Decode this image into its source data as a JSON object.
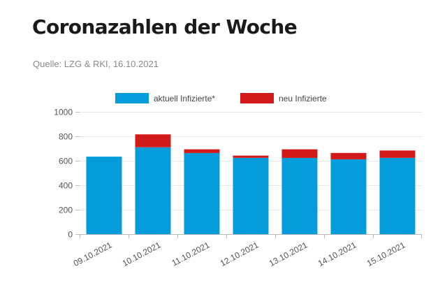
{
  "page": {
    "title": "Coronazahlen der Woche",
    "source": "Quelle: LZG & RKI, 16.10.2021"
  },
  "chart_data": {
    "type": "bar",
    "stacked": true,
    "categories": [
      "09.10.2021",
      "10.10.2021",
      "11.10.2021",
      "12.10.2021",
      "13.10.2021",
      "14.10.2021",
      "15.10.2021"
    ],
    "series": [
      {
        "name": "aktuell Infizierte*",
        "color": "#049cdb",
        "values": [
          634,
          710,
          664,
          624,
          624,
          612,
          624
        ]
      },
      {
        "name": "neu Infizierte",
        "color": "#d31a1a",
        "values": [
          0,
          106,
          30,
          18,
          70,
          52,
          60
        ]
      }
    ],
    "ylim": [
      0,
      1000
    ],
    "yticks": [
      0,
      200,
      400,
      600,
      800,
      1000
    ],
    "grid": true,
    "legend_position": "top-center"
  }
}
